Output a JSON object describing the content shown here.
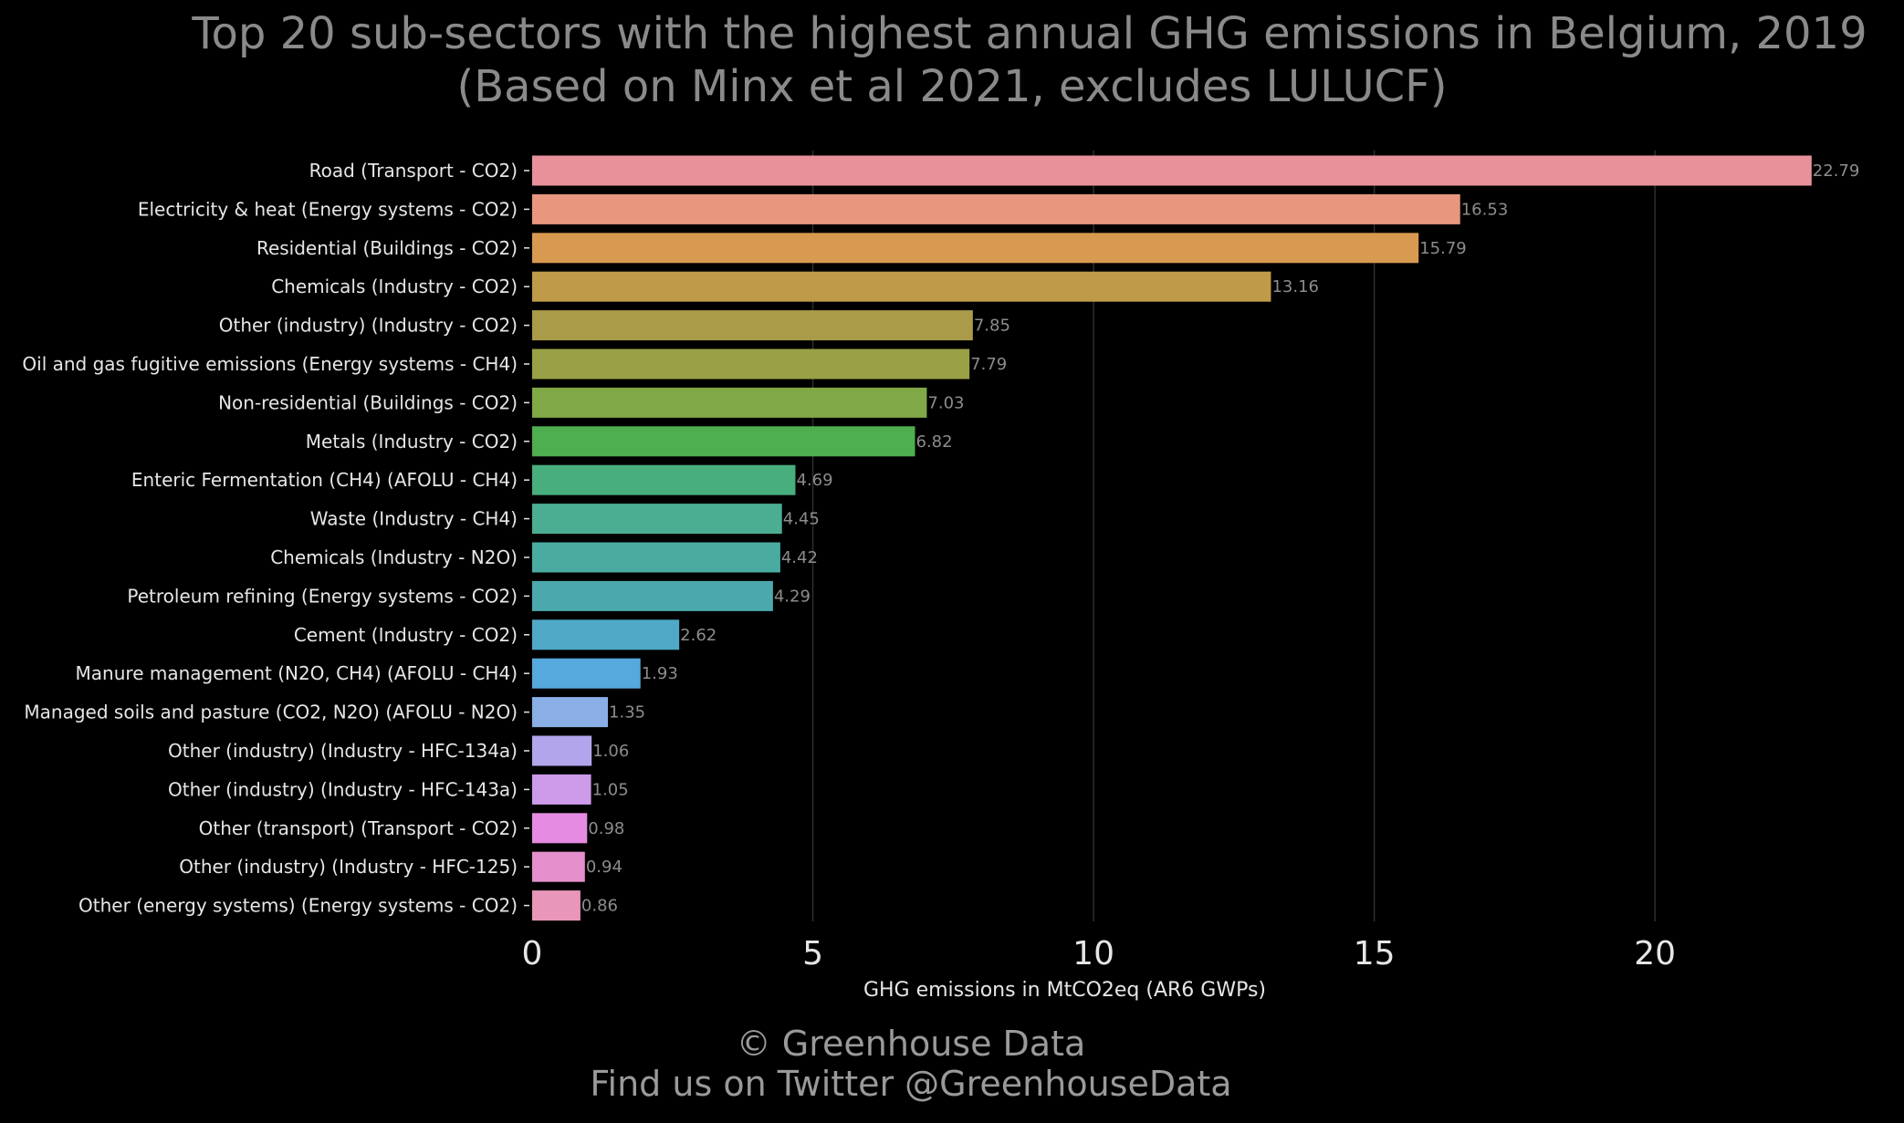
{
  "title": {
    "line1": "Top 20 sub-sectors with the highest annual GHG emissions in Belgium, 2019",
    "line2": "(Based on Minx et al 2021, excludes LULUCF)"
  },
  "footer": {
    "line1": "© Greenhouse Data",
    "line2": "Find us on Twitter @GreenhouseData"
  },
  "chart_data": {
    "type": "bar",
    "orientation": "horizontal",
    "title": "Top 20 sub-sectors with the highest annual GHG emissions in Belgium, 2019 (Based on Minx et al 2021, excludes LULUCF)",
    "xlabel": "GHG emissions in MtCO2eq (AR6 GWPs)",
    "ylabel": "",
    "xlim": [
      0,
      23.2
    ],
    "xticks": [
      0,
      5,
      10,
      15,
      20
    ],
    "grid": "vertical",
    "categories": [
      "Road (Transport - CO2)",
      "Electricity & heat (Energy systems - CO2)",
      "Residential (Buildings - CO2)",
      "Chemicals (Industry - CO2)",
      "Other (industry) (Industry - CO2)",
      "Oil and gas fugitive emissions (Energy systems - CH4)",
      "Non-residential (Buildings - CO2)",
      "Metals (Industry - CO2)",
      "Enteric Fermentation (CH4) (AFOLU - CH4)",
      "Waste (Industry - CH4)",
      "Chemicals (Industry - N2O)",
      "Petroleum refining (Energy systems - CO2)",
      "Cement (Industry - CO2)",
      "Manure management (N2O, CH4) (AFOLU - CH4)",
      "Managed soils and pasture (CO2, N2O) (AFOLU - N2O)",
      "Other (industry) (Industry - HFC-134a)",
      "Other (industry) (Industry - HFC-143a)",
      "Other (transport) (Transport - CO2)",
      "Other (industry) (Industry - HFC-125)",
      "Other (energy systems) (Energy systems - CO2)"
    ],
    "values": [
      22.79,
      16.53,
      15.79,
      13.16,
      7.85,
      7.79,
      7.03,
      6.82,
      4.69,
      4.45,
      4.42,
      4.29,
      2.62,
      1.93,
      1.35,
      1.06,
      1.05,
      0.98,
      0.94,
      0.86
    ],
    "value_labels": [
      "22.79",
      "16.53",
      "15.79",
      "13.16",
      "7.85",
      "7.79",
      "7.03",
      "6.82",
      "4.69",
      "4.45",
      "4.42",
      "4.29",
      "2.62",
      "1.93",
      "1.35",
      "1.06",
      "1.05",
      "0.98",
      "0.94",
      "0.86"
    ],
    "colors": [
      "#e8919a",
      "#e8967e",
      "#d89950",
      "#bf9a48",
      "#a99b48",
      "#9aa045",
      "#80a846",
      "#4eaf50",
      "#48ae7e",
      "#4bae92",
      "#4aaca0",
      "#4ba9ad",
      "#4fa9c6",
      "#55a9dc",
      "#8aaee6",
      "#b3a5ec",
      "#cd9bea",
      "#e58be1",
      "#e48fcc",
      "#e896b9"
    ]
  }
}
